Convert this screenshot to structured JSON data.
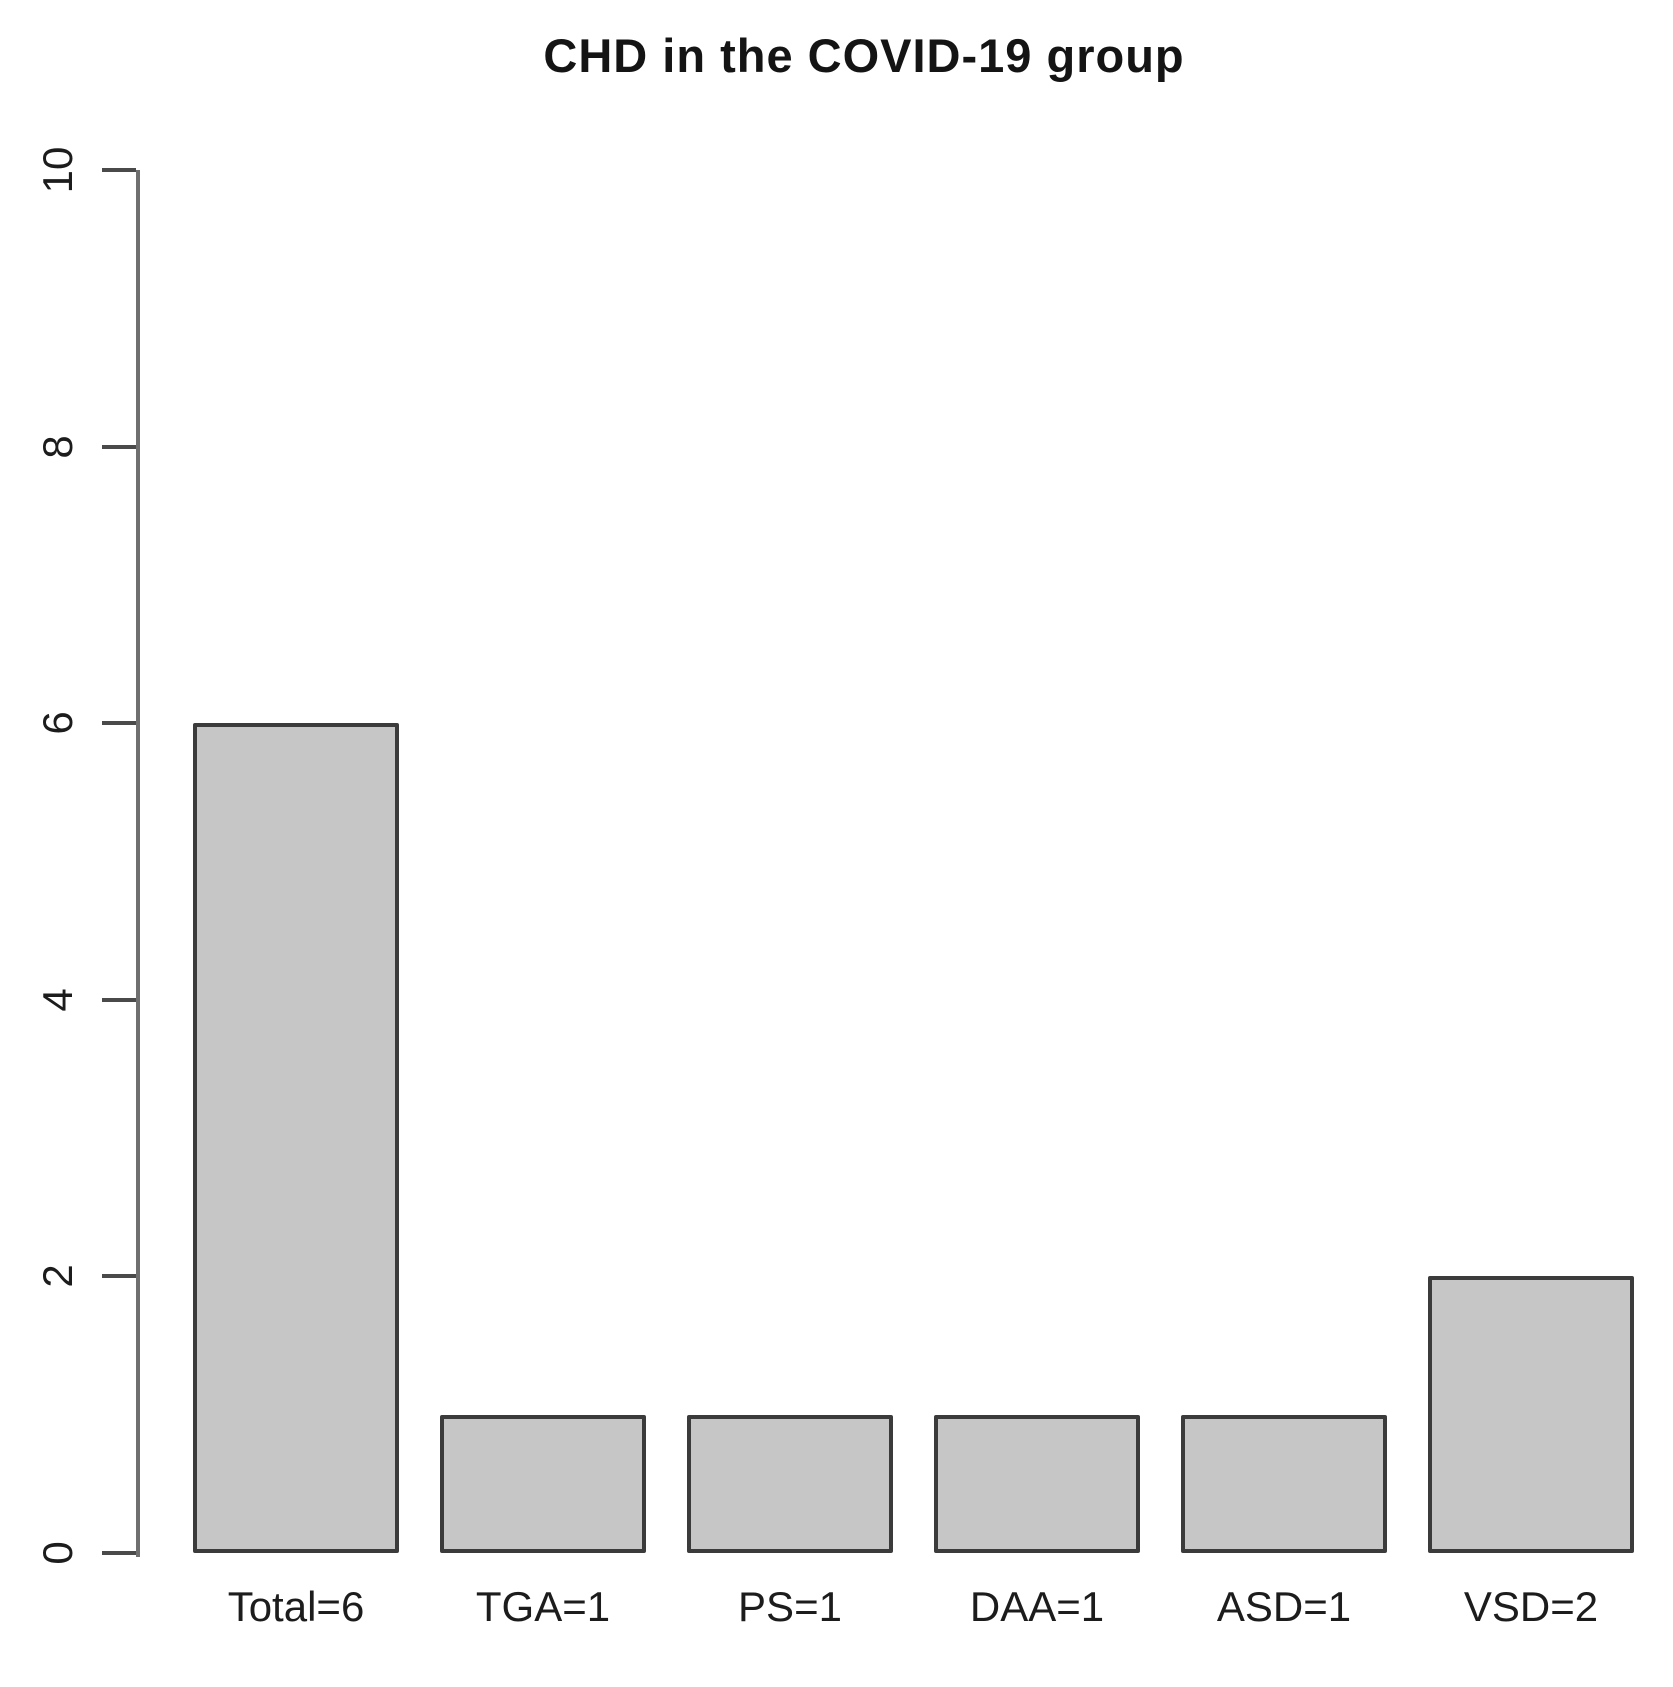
{
  "chart_data": {
    "type": "bar",
    "title": "CHD in the COVID-19 group",
    "categories": [
      "Total=6",
      "TGA=1",
      "PS=1",
      "DAA=1",
      "ASD=1",
      "VSD=2"
    ],
    "values": [
      6,
      1,
      1,
      1,
      1,
      2
    ],
    "xlabel": "",
    "ylabel": "",
    "ylim": [
      0,
      10
    ],
    "yticks": [
      0,
      2,
      4,
      6,
      8,
      10
    ],
    "grid": false,
    "legend_position": "none",
    "colors": {
      "bar_fill": "#c6c6c6",
      "bar_border": "#3b3b3b",
      "axis_line": "#6f6f6f",
      "tick_mark": "#4a4a4a",
      "text": "#1c1c1c",
      "background": "#ffffff"
    }
  }
}
